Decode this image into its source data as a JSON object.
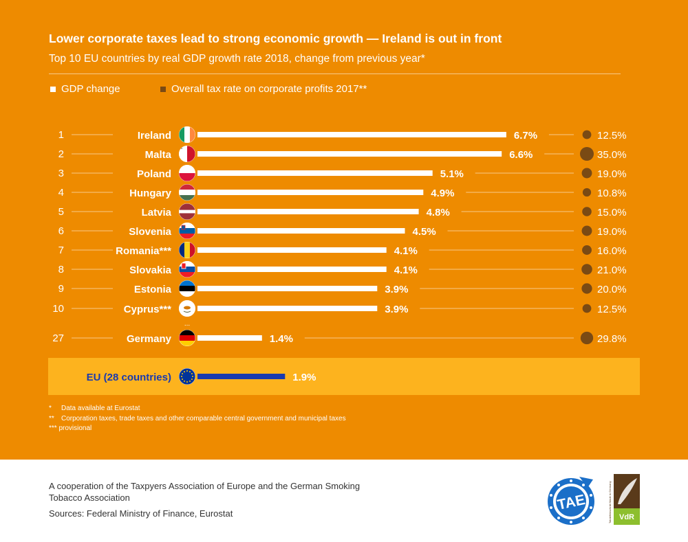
{
  "header": {
    "title": "Lower corporate taxes lead to strong economic growth — Ireland is out in front",
    "subtitle": "Top 10 EU countries by real GDP growth rate 2018, change from previous year*"
  },
  "legend": {
    "gdp": "GDP change",
    "tax": "Overall tax rate on corporate profits 2017**"
  },
  "colors": {
    "background": "#EE8B00",
    "bar": "#FFFFFF",
    "tax_dot": "#7A4A14",
    "eu_band": "#FDB31E",
    "eu_bar": "#1A3AAE",
    "eu_label": "#1A3AAE"
  },
  "chart_data": {
    "type": "bar",
    "title": "Lower corporate taxes lead to strong economic growth — Ireland is out in front",
    "subtitle": "Top 10 EU countries by real GDP growth rate 2018, change from previous year*",
    "series": [
      {
        "name": "GDP change",
        "unit": "%"
      },
      {
        "name": "Overall tax rate on corporate profits 2017**",
        "unit": "%"
      }
    ],
    "rows": [
      {
        "rank": "1",
        "country": "Ireland",
        "gdp": 6.7,
        "gdp_label": "6.7%",
        "tax": 12.5,
        "tax_label": "12.5%",
        "flag": "ireland-flag-icon"
      },
      {
        "rank": "2",
        "country": "Malta",
        "gdp": 6.6,
        "gdp_label": "6.6%",
        "tax": 35.0,
        "tax_label": "35.0%",
        "flag": "malta-flag-icon"
      },
      {
        "rank": "3",
        "country": "Poland",
        "gdp": 5.1,
        "gdp_label": "5.1%",
        "tax": 19.0,
        "tax_label": "19.0%",
        "flag": "poland-flag-icon"
      },
      {
        "rank": "4",
        "country": "Hungary",
        "gdp": 4.9,
        "gdp_label": "4.9%",
        "tax": 10.8,
        "tax_label": "10.8%",
        "flag": "hungary-flag-icon"
      },
      {
        "rank": "5",
        "country": "Latvia",
        "gdp": 4.8,
        "gdp_label": "4.8%",
        "tax": 15.0,
        "tax_label": "15.0%",
        "flag": "latvia-flag-icon"
      },
      {
        "rank": "6",
        "country": "Slovenia",
        "gdp": 4.5,
        "gdp_label": "4.5%",
        "tax": 19.0,
        "tax_label": "19.0%",
        "flag": "slovenia-flag-icon"
      },
      {
        "rank": "7",
        "country": "Romania***",
        "gdp": 4.1,
        "gdp_label": "4.1%",
        "tax": 16.0,
        "tax_label": "16.0%",
        "flag": "romania-flag-icon"
      },
      {
        "rank": "8",
        "country": "Slovakia",
        "gdp": 4.1,
        "gdp_label": "4.1%",
        "tax": 21.0,
        "tax_label": "21.0%",
        "flag": "slovakia-flag-icon"
      },
      {
        "rank": "9",
        "country": "Estonia",
        "gdp": 3.9,
        "gdp_label": "3.9%",
        "tax": 20.0,
        "tax_label": "20.0%",
        "flag": "estonia-flag-icon"
      },
      {
        "rank": "10",
        "country": "Cyprus***",
        "gdp": 3.9,
        "gdp_label": "3.9%",
        "tax": 12.5,
        "tax_label": "12.5%",
        "flag": "cyprus-flag-icon"
      },
      {
        "rank": "27",
        "country": "Germany",
        "gdp": 1.4,
        "gdp_label": "1.4%",
        "tax": 29.8,
        "tax_label": "29.8%",
        "flag": "germany-flag-icon"
      }
    ],
    "ellipsis": "...",
    "eu": {
      "country": "EU (28 countries)",
      "gdp": 1.9,
      "gdp_label": "1.9%",
      "flag": "eu-flag-icon"
    }
  },
  "footnotes": [
    {
      "mark": "*",
      "text": "Data available at Eurostat"
    },
    {
      "mark": "**",
      "text": "Corporation taxes, trade taxes and other comparable central government and municipal taxes"
    },
    {
      "mark": "***",
      "text": "provisional"
    }
  ],
  "credits": {
    "cooperation": "A cooperation of the Taxpyers Association of Europe and the German Smoking Tobacco Association",
    "sources": "Sources: Federal Ministry of Finance, Eurostat"
  },
  "logos": {
    "tae_text": "TAE",
    "vdr_text": "VdR",
    "vdr_side": "Tabakfeinschnitt Made in Germany"
  }
}
